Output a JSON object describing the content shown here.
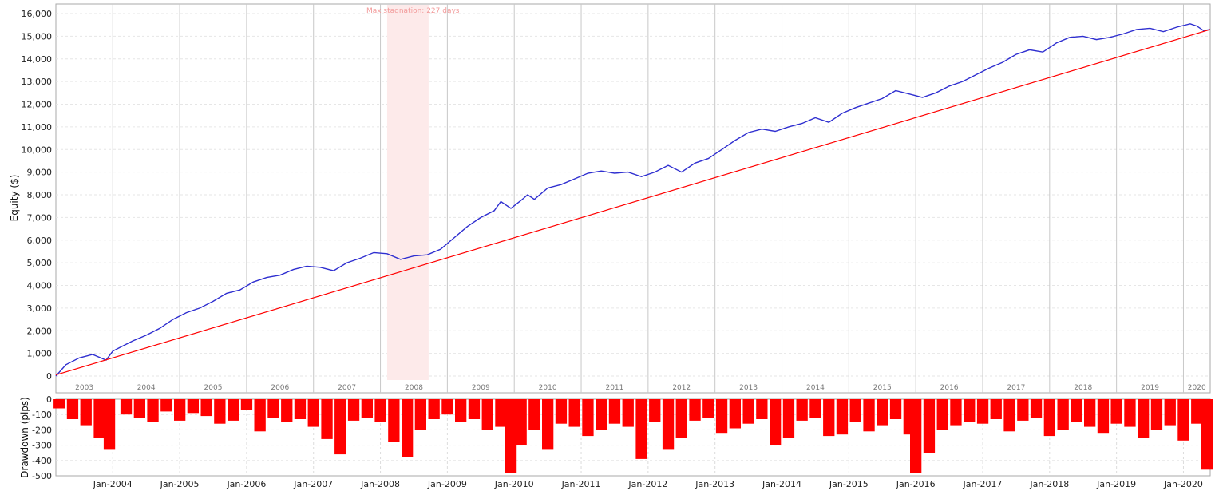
{
  "chart_data": [
    {
      "type": "line",
      "ylabel": "Equity ($)",
      "ylim": [
        0,
        16000
      ],
      "yticks": [
        "0",
        "1,000",
        "2,000",
        "3,000",
        "4,000",
        "5,000",
        "6,000",
        "7,000",
        "8,000",
        "9,000",
        "10,000",
        "11,000",
        "12,000",
        "13,000",
        "14,000",
        "15,000",
        "16,000"
      ],
      "xlim": [
        2003.15,
        2020.4
      ],
      "year_labels": [
        "2003",
        "2004",
        "2005",
        "2006",
        "2007",
        "2008",
        "2009",
        "2010",
        "2011",
        "2012",
        "2013",
        "2014",
        "2015",
        "2016",
        "2017",
        "2018",
        "2019",
        "2020"
      ],
      "grid": true,
      "annotation": {
        "text": "Max stagnation: 227 days",
        "x_start": 2008.1,
        "x_end": 2008.72,
        "color": "#fdeaea"
      },
      "series": [
        {
          "color": "#2f2fd0",
          "x": [
            2003.15,
            2003.3,
            2003.5,
            2003.7,
            2003.9,
            2004.0,
            2004.1,
            2004.3,
            2004.5,
            2004.7,
            2004.9,
            2005.1,
            2005.3,
            2005.5,
            2005.7,
            2005.9,
            2006.1,
            2006.3,
            2006.5,
            2006.7,
            2006.9,
            2007.1,
            2007.3,
            2007.5,
            2007.7,
            2007.9,
            2008.1,
            2008.3,
            2008.5,
            2008.7,
            2008.9,
            2009.1,
            2009.3,
            2009.5,
            2009.7,
            2009.8,
            2009.95,
            2010.1,
            2010.2,
            2010.3,
            2010.5,
            2010.7,
            2010.9,
            2011.1,
            2011.3,
            2011.5,
            2011.7,
            2011.9,
            2012.1,
            2012.3,
            2012.5,
            2012.7,
            2012.9,
            2013.1,
            2013.3,
            2013.5,
            2013.7,
            2013.9,
            2014.1,
            2014.3,
            2014.5,
            2014.7,
            2014.9,
            2015.1,
            2015.3,
            2015.5,
            2015.7,
            2015.9,
            2016.1,
            2016.3,
            2016.5,
            2016.7,
            2016.9,
            2017.1,
            2017.3,
            2017.5,
            2017.7,
            2017.9,
            2018.1,
            2018.3,
            2018.5,
            2018.7,
            2018.9,
            2019.1,
            2019.3,
            2019.5,
            2019.7,
            2019.9,
            2020.1,
            2020.2,
            2020.3,
            2020.4
          ],
          "y": [
            0,
            500,
            800,
            950,
            700,
            1100,
            1250,
            1550,
            1800,
            2100,
            2500,
            2800,
            3000,
            3300,
            3650,
            3800,
            4150,
            4350,
            4450,
            4700,
            4850,
            4800,
            4650,
            5000,
            5200,
            5450,
            5400,
            5150,
            5300,
            5350,
            5600,
            6100,
            6600,
            7000,
            7300,
            7700,
            7400,
            7750,
            8000,
            7800,
            8300,
            8450,
            8700,
            8950,
            9050,
            8950,
            9000,
            8800,
            9000,
            9300,
            9000,
            9400,
            9600,
            10000,
            10400,
            10750,
            10900,
            10800,
            11000,
            11150,
            11400,
            11200,
            11600,
            11850,
            12050,
            12250,
            12600,
            12450,
            12300,
            12500,
            12800,
            13000,
            13300,
            13600,
            13850,
            14200,
            14400,
            14300,
            14700,
            14950,
            15000,
            14850,
            14950,
            15100,
            15300,
            15350,
            15200,
            15400,
            15550,
            15450,
            15250,
            15300
          ]
        },
        {
          "color": "#ff0000",
          "x": [
            2003.15,
            2020.4
          ],
          "y": [
            50,
            15300
          ]
        }
      ]
    },
    {
      "type": "bar",
      "ylabel": "Drawdown (pips)",
      "ylim": [
        -500,
        0
      ],
      "yticks": [
        "0",
        "-100",
        "-200",
        "-300",
        "-400",
        "-500"
      ],
      "color": "#ff0000",
      "x_labels": [
        "Jan-2004",
        "Jan-2005",
        "Jan-2006",
        "Jan-2007",
        "Jan-2008",
        "Jan-2009",
        "Jan-2010",
        "Jan-2011",
        "Jan-2012",
        "Jan-2013",
        "Jan-2014",
        "Jan-2015",
        "Jan-2016",
        "Jan-2017",
        "Jan-2018",
        "Jan-2019",
        "Jan-2020"
      ],
      "x": [
        2003.2,
        2003.4,
        2003.6,
        2003.8,
        2003.95,
        2004.2,
        2004.4,
        2004.6,
        2004.8,
        2005.0,
        2005.2,
        2005.4,
        2005.6,
        2005.8,
        2006.0,
        2006.2,
        2006.4,
        2006.6,
        2006.8,
        2007.0,
        2007.2,
        2007.4,
        2007.6,
        2007.8,
        2008.0,
        2008.2,
        2008.4,
        2008.6,
        2008.8,
        2009.0,
        2009.2,
        2009.4,
        2009.6,
        2009.8,
        2009.95,
        2010.1,
        2010.3,
        2010.5,
        2010.7,
        2010.9,
        2011.1,
        2011.3,
        2011.5,
        2011.7,
        2011.9,
        2012.1,
        2012.3,
        2012.5,
        2012.7,
        2012.9,
        2013.1,
        2013.3,
        2013.5,
        2013.7,
        2013.9,
        2014.1,
        2014.3,
        2014.5,
        2014.7,
        2014.9,
        2015.1,
        2015.3,
        2015.5,
        2015.7,
        2015.9,
        2016.0,
        2016.2,
        2016.4,
        2016.6,
        2016.8,
        2017.0,
        2017.2,
        2017.4,
        2017.6,
        2017.8,
        2018.0,
        2018.2,
        2018.4,
        2018.6,
        2018.8,
        2019.0,
        2019.2,
        2019.4,
        2019.6,
        2019.8,
        2020.0,
        2020.2,
        2020.35
      ],
      "values": [
        -60,
        -130,
        -170,
        -250,
        -330,
        -100,
        -120,
        -150,
        -80,
        -140,
        -90,
        -110,
        -160,
        -140,
        -70,
        -210,
        -120,
        -150,
        -130,
        -180,
        -260,
        -360,
        -140,
        -120,
        -150,
        -280,
        -380,
        -200,
        -130,
        -100,
        -150,
        -130,
        -200,
        -180,
        -480,
        -300,
        -200,
        -330,
        -160,
        -180,
        -240,
        -200,
        -160,
        -180,
        -390,
        -150,
        -330,
        -250,
        -140,
        -120,
        -220,
        -190,
        -160,
        -130,
        -300,
        -250,
        -140,
        -120,
        -240,
        -230,
        -150,
        -210,
        -170,
        -130,
        -230,
        -480,
        -350,
        -200,
        -170,
        -150,
        -160,
        -130,
        -210,
        -140,
        -120,
        -240,
        -200,
        -150,
        -180,
        -220,
        -160,
        -180,
        -250,
        -200,
        -170,
        -270,
        -160,
        -460
      ]
    }
  ]
}
